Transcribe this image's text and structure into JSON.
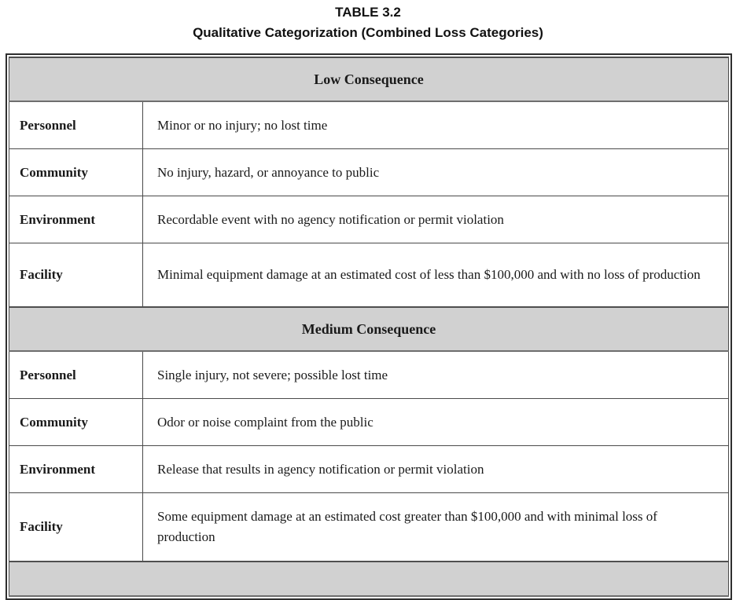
{
  "title": "TABLE 3.2",
  "subtitle": "Qualitative Categorization (Combined Loss Categories)",
  "table": {
    "column_semantics": [
      "loss_category",
      "description"
    ],
    "sections": [
      {
        "header": "Low Consequence",
        "rows": [
          {
            "category": "Personnel",
            "description": "Minor or no injury; no lost time"
          },
          {
            "category": "Community",
            "description": "No injury, hazard, or annoyance to public"
          },
          {
            "category": "Environment",
            "description": "Recordable event with no agency notification or permit violation"
          },
          {
            "category": "Facility",
            "description": "Minimal equipment damage at an estimated cost of less than $100,000 and with no loss of production"
          }
        ]
      },
      {
        "header": "Medium Consequence",
        "rows": [
          {
            "category": "Personnel",
            "description": "Single injury, not severe; possible lost time"
          },
          {
            "category": "Community",
            "description": "Odor or noise complaint from the public"
          },
          {
            "category": "Environment",
            "description": "Release that results in agency notification or permit violation"
          },
          {
            "category": "Facility",
            "description": "Some equipment damage at an estimated cost greater than $100,000 and with minimal loss of production"
          }
        ]
      },
      {
        "header": "",
        "rows": [],
        "note_visible_as": "partial gray band clipped at bottom edge of screenshot"
      }
    ]
  },
  "colors": {
    "section_header_bg": "#d1d1d1",
    "border_outer": "#2f2f2f",
    "border_inner": "#4a4a4a",
    "text": "#1a1a1a",
    "page_bg": "#ffffff"
  }
}
